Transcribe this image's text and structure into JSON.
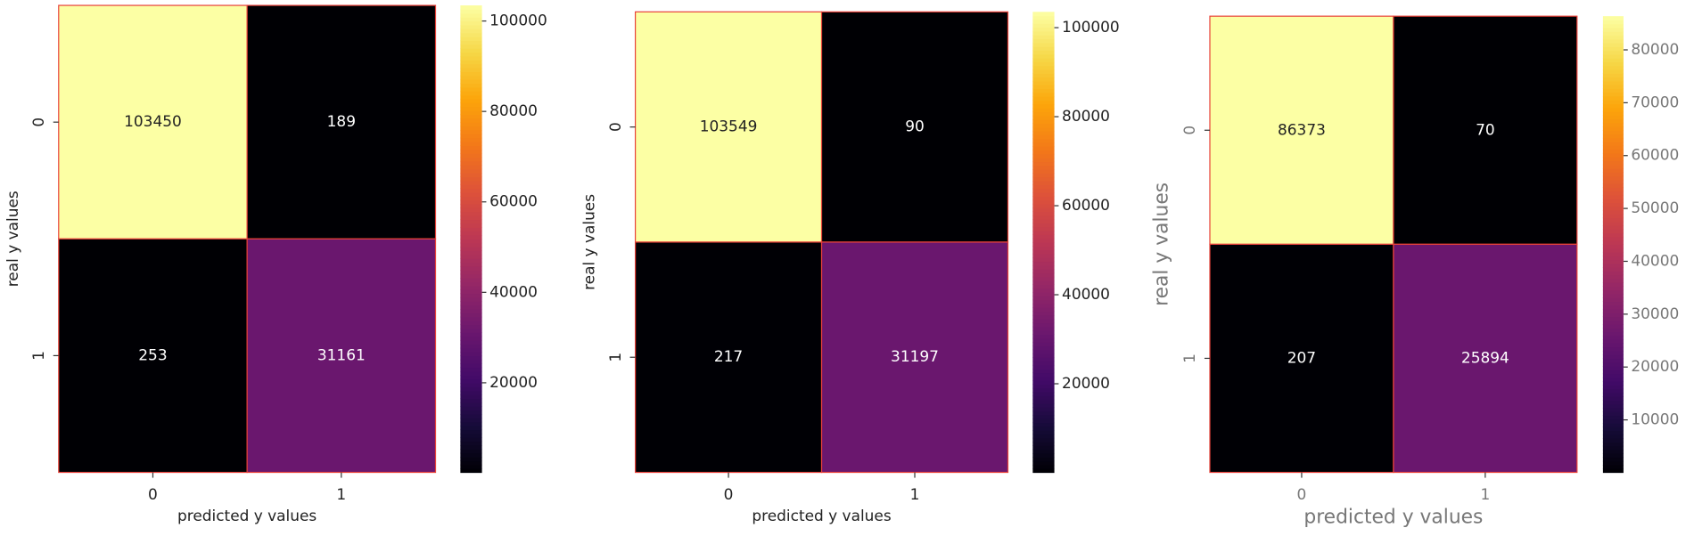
{
  "chart_data": [
    {
      "type": "heatmap",
      "x_label": "predicted y values",
      "y_label": "real y values",
      "x_categories": [
        "0",
        "1"
      ],
      "y_categories": [
        "0",
        "1"
      ],
      "values": [
        [
          103450,
          189
        ],
        [
          253,
          31161
        ]
      ],
      "colormap": "inferno",
      "clim": [
        189,
        103450
      ],
      "cticks": [
        20000,
        40000,
        60000,
        80000,
        100000
      ]
    },
    {
      "type": "heatmap",
      "x_label": "predicted y values",
      "y_label": "real y values",
      "x_categories": [
        "0",
        "1"
      ],
      "y_categories": [
        "0",
        "1"
      ],
      "values": [
        [
          103549,
          90
        ],
        [
          217,
          31197
        ]
      ],
      "colormap": "inferno",
      "clim": [
        90,
        103549
      ],
      "cticks": [
        20000,
        40000,
        60000,
        80000,
        100000
      ]
    },
    {
      "type": "heatmap",
      "x_label": "predicted y values",
      "y_label": "real y values",
      "x_categories": [
        "0",
        "1"
      ],
      "y_categories": [
        "0",
        "1"
      ],
      "values": [
        [
          86373,
          70
        ],
        [
          207,
          25894
        ]
      ],
      "colormap": "inferno",
      "clim": [
        70,
        86373
      ],
      "cticks": [
        10000,
        20000,
        30000,
        40000,
        50000,
        60000,
        70000,
        80000
      ]
    }
  ]
}
